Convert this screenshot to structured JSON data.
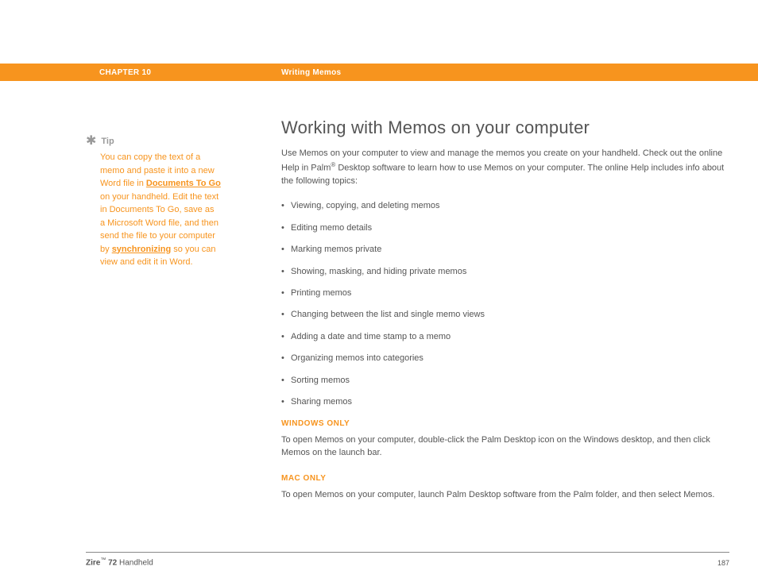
{
  "header": {
    "chapter": "CHAPTER 10",
    "section": "Writing Memos"
  },
  "sidebar": {
    "tip_label": "Tip",
    "tip_text_1": "You can copy the text of a memo and paste it into a new Word file in ",
    "tip_link_1": "Documents To Go",
    "tip_text_2": " on your handheld. Edit the text in Documents To Go, save as a Microsoft Word file, and then send the file to your computer by ",
    "tip_link_2": "synchronizing",
    "tip_text_3": " so you can view and edit it in Word."
  },
  "main": {
    "title": "Working with Memos on your computer",
    "intro_1": "Use Memos on your computer to view and manage the memos you create on your handheld. Check out the online Help in Palm",
    "intro_reg": "®",
    "intro_2": " Desktop software to learn how to use Memos on your computer. The online Help includes info about the following topics:",
    "bullets": [
      "Viewing, copying, and deleting memos",
      "Editing memo details",
      "Marking memos private",
      "Showing, masking, and hiding private memos",
      "Printing memos",
      "Changing between the list and single memo views",
      "Adding a date and time stamp to a memo",
      "Organizing memos into categories",
      "Sorting memos",
      "Sharing memos"
    ],
    "windows_heading": "WINDOWS ONLY",
    "windows_body": "To open Memos on your computer, double-click the Palm Desktop icon on the Windows desktop, and then click Memos on the launch bar.",
    "mac_heading": "MAC ONLY",
    "mac_body": "To open Memos on your computer, launch Palm Desktop software from the Palm folder, and then select Memos."
  },
  "footer": {
    "product_bold": "Zire",
    "product_tm": "™",
    "product_num": " 72",
    "product_tail": " Handheld",
    "page": "187"
  },
  "colors": {
    "accent": "#f7941e",
    "text": "#555555",
    "muted": "#999999"
  }
}
